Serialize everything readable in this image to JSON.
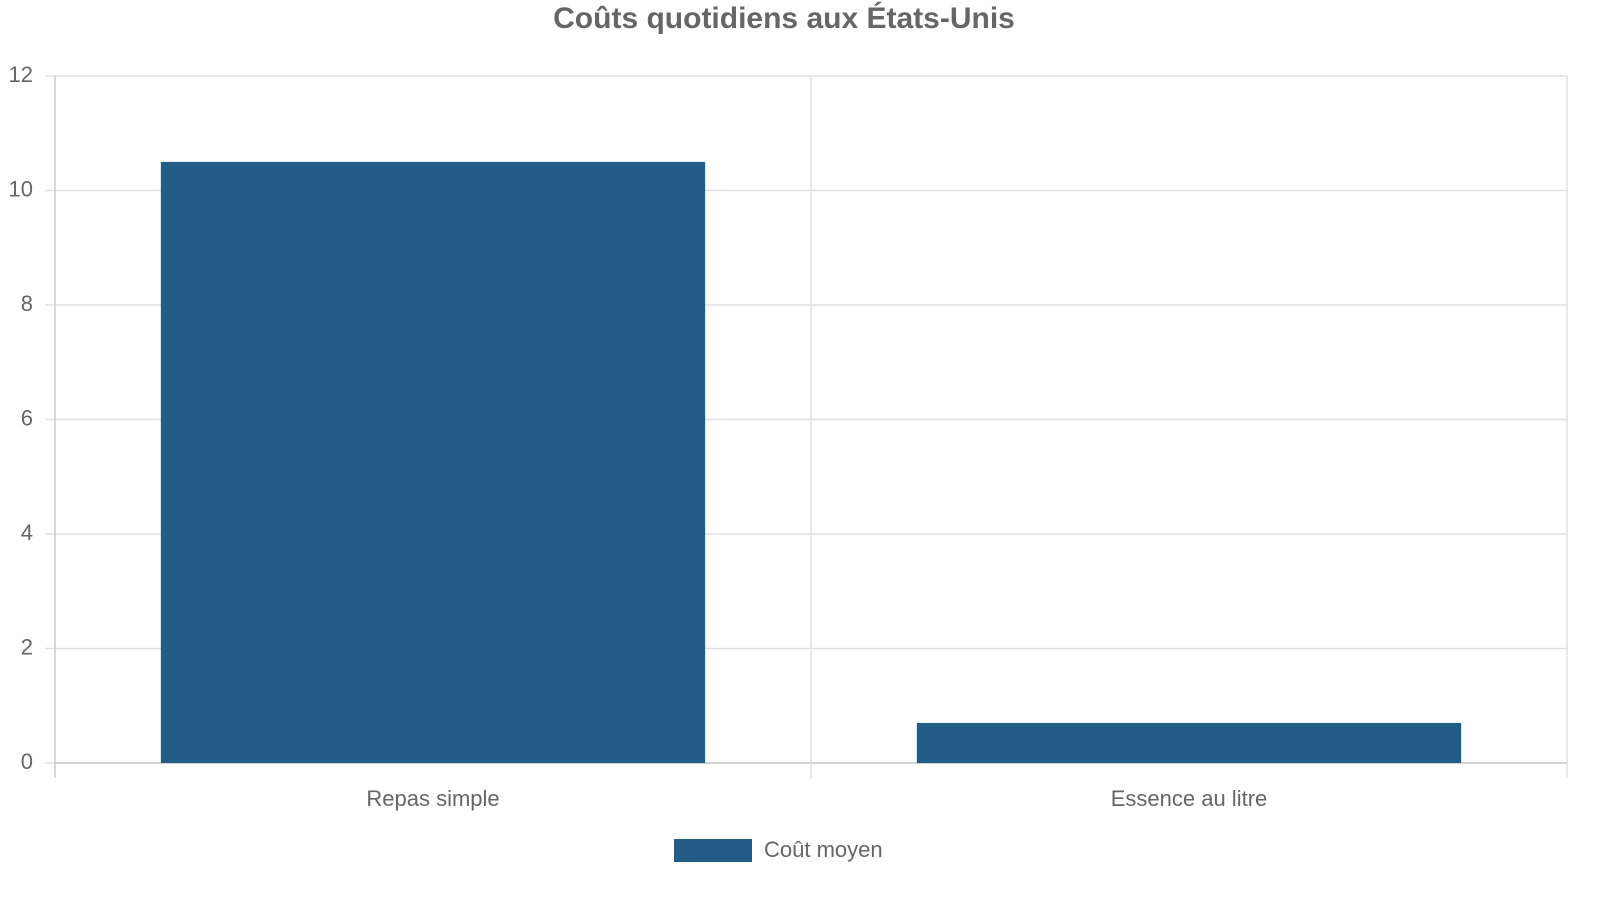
{
  "chart_data": {
    "type": "bar",
    "title": "Coûts quotidiens aux États-Unis",
    "categories": [
      "Repas simple",
      "Essence au litre"
    ],
    "series": [
      {
        "name": "Coût moyen",
        "color": "#215d87",
        "values": [
          10.5,
          0.7
        ]
      }
    ],
    "ylim": [
      0,
      12
    ],
    "yticks": [
      0,
      2,
      4,
      6,
      8,
      10,
      12
    ],
    "grid": true,
    "legend": "bottom"
  }
}
